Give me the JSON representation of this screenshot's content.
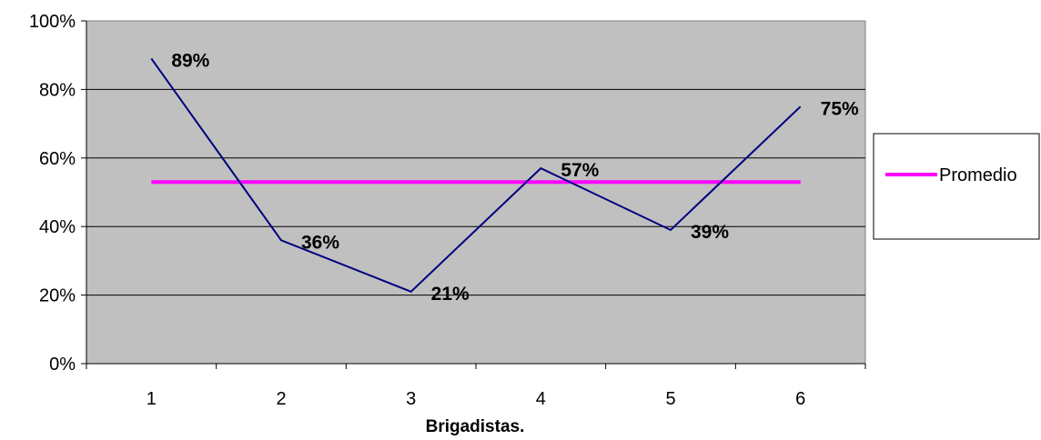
{
  "chart_data": {
    "type": "line",
    "xlabel": "Brigadistas.",
    "ylabel": "",
    "x": [
      "1",
      "2",
      "3",
      "4",
      "5",
      "6"
    ],
    "yticks": [
      "0%",
      "20%",
      "40%",
      "60%",
      "80%",
      "100%"
    ],
    "ylim": [
      0,
      100
    ],
    "grid": true,
    "legend_position": "right",
    "series": [
      {
        "values": [
          89,
          36,
          21,
          57,
          39,
          75
        ],
        "data_labels": [
          "89%",
          "36%",
          "21%",
          "57%",
          "39%",
          "75%"
        ],
        "color": "#000080"
      },
      {
        "name": "Promedio",
        "values": [
          53,
          53,
          53,
          53,
          53,
          53
        ],
        "color": "#ff00ff"
      }
    ],
    "plot_background": "#c0c0c0"
  }
}
